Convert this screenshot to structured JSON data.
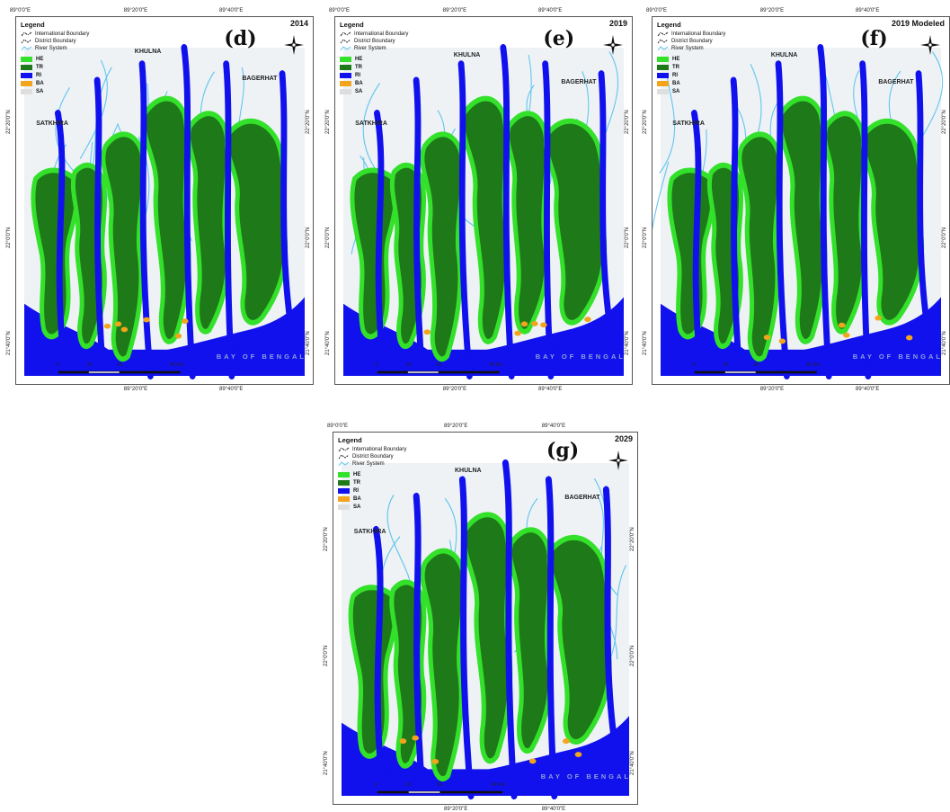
{
  "colors": {
    "HE": "#33e12a",
    "TR": "#1e7a18",
    "RI": "#1111ee",
    "BA": "#f3a41d",
    "SA": "#dedede",
    "land": "#eef2f5",
    "river_line": "#62c6ee"
  },
  "legend": {
    "title": "Legend",
    "lines": [
      {
        "label": "International Boundary",
        "icon": "international-boundary-line"
      },
      {
        "label": "District Boundary",
        "icon": "district-boundary-line"
      },
      {
        "label": "River System",
        "icon": "river-system-line"
      }
    ],
    "classes": [
      {
        "code": "HE"
      },
      {
        "code": "TR"
      },
      {
        "code": "RI"
      },
      {
        "code": "BA"
      },
      {
        "code": "SA"
      }
    ]
  },
  "places": {
    "khulna": "KHULNA",
    "bagerhat": "BAGERHAT",
    "satkhira": "SATKHIRA",
    "bay": "BAY OF BENGAL"
  },
  "scale_labels": [
    "0",
    "10",
    "20",
    "40 Km"
  ],
  "panels": [
    {
      "id": "d",
      "label": "(d)",
      "year": "2014",
      "top_coords": [
        "89°0'0\"E",
        "89°20'0\"E",
        "89°40'0\"E"
      ],
      "bottom_coords": [
        "89°20'0\"E",
        "89°40'0\"E"
      ],
      "left_coords": [
        "22°20'0\"N",
        "22°0'0\"N",
        "21°40'0\"N"
      ],
      "right_coords": [
        "22°20'0\"N",
        "22°0'0\"N",
        "21°40'0\"N"
      ],
      "ba_level": 0.15
    },
    {
      "id": "e",
      "label": "(e)",
      "year": "2019",
      "top_coords": [
        "89°0'0\"E",
        "89°20'0\"E",
        "89°40'0\"E"
      ],
      "bottom_coords": [
        "89°20'0\"E",
        "89°40'0\"E"
      ],
      "left_coords": [
        "22°20'0\"N",
        "22°0'0\"N",
        "21°40'0\"N"
      ],
      "right_coords": [
        "22°20'0\"N",
        "22°0'0\"N",
        "21°40'0\"N"
      ],
      "ba_level": 0.35
    },
    {
      "id": "f",
      "label": "(f)",
      "year": "2019 Modeled",
      "top_coords": [
        "89°0'0\"E",
        "89°20'0\"E",
        "89°40'0\"E"
      ],
      "bottom_coords": [
        "89°20'0\"E",
        "89°40'0\"E"
      ],
      "left_coords": [
        "22°20'0\"N",
        "22°0'0\"N",
        "21°40'0\"N"
      ],
      "right_coords": [
        "22°20'0\"N",
        "22°0'0\"N",
        "21°40'0\"N"
      ],
      "ba_level": 0.35
    },
    {
      "id": "g",
      "label": "(g)",
      "year": "2029",
      "top_coords": [
        "89°0'0\"E",
        "89°20'0\"E",
        "89°40'0\"E"
      ],
      "bottom_coords": [
        "89°20'0\"E",
        "89°40'0\"E"
      ],
      "left_coords": [
        "22°20'0\"N",
        "22°0'0\"N",
        "21°40'0\"N"
      ],
      "right_coords": [
        "22°20'0\"N",
        "22°0'0\"N",
        "21°40'0\"N"
      ],
      "ba_level": 0.6
    }
  ]
}
